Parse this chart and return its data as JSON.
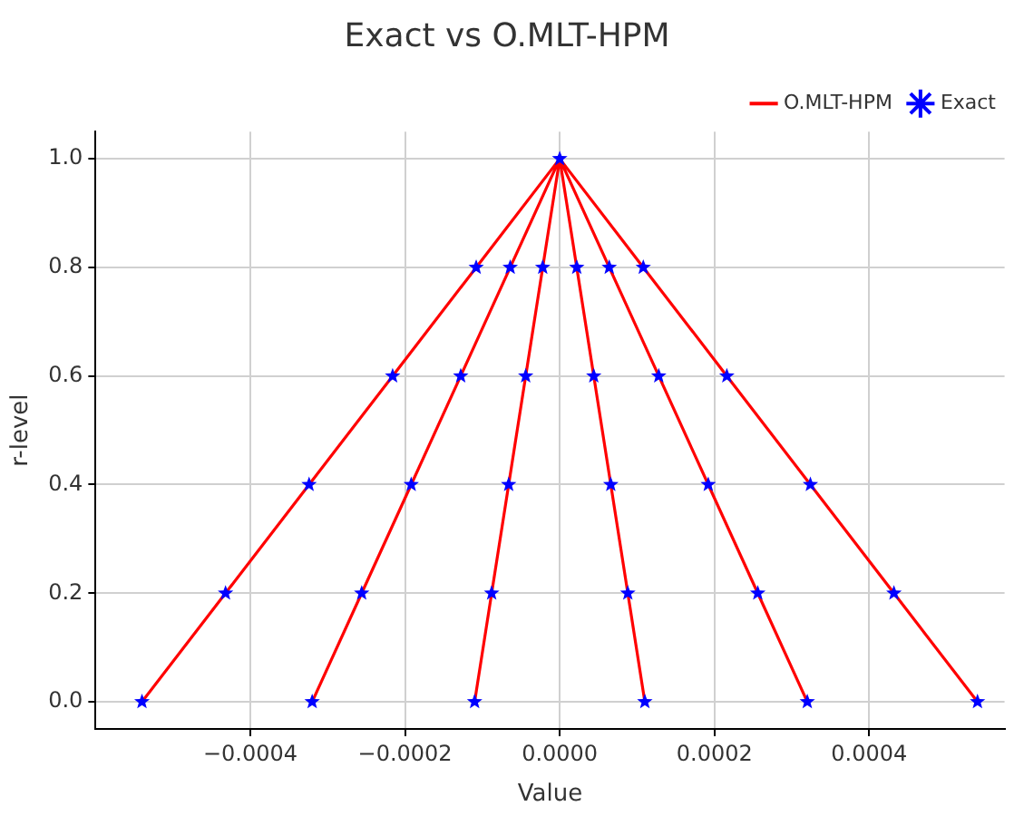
{
  "chart_data": {
    "type": "line",
    "title": "Exact vs O.MLT-HPM",
    "xlabel": "Value",
    "ylabel": "r-level",
    "series": [
      {
        "name": "O.MLT-HPM",
        "color": "#ff0000",
        "marker": "none",
        "x": [
          -0.00054,
          -0.000432,
          -0.000324,
          -0.000216,
          -0.000108,
          0,
          0.000108,
          0.000216,
          0.000324,
          0.000432,
          0.00054,
          null,
          -0.00032,
          -0.000256,
          -0.000192,
          -0.000128,
          -6.4e-05,
          0,
          6.4e-05,
          0.000128,
          0.000192,
          0.000256,
          0.00032,
          null,
          -0.00011,
          -8.8e-05,
          -6.6e-05,
          -4.4e-05,
          -2.2e-05,
          0,
          2.2e-05,
          4.4e-05,
          6.6e-05,
          8.8e-05,
          0.00011
        ],
        "values": [
          0,
          0.2,
          0.4,
          0.6,
          0.8,
          1,
          0.8,
          0.6,
          0.4,
          0.2,
          0,
          null,
          0,
          0.2,
          0.4,
          0.6,
          0.8,
          1,
          0.8,
          0.6,
          0.4,
          0.2,
          0,
          null,
          0,
          0.2,
          0.4,
          0.6,
          0.8,
          1,
          0.8,
          0.6,
          0.4,
          0.2,
          0
        ]
      },
      {
        "name": "Exact",
        "type": "scatter",
        "color": "#0000ff",
        "marker": "star",
        "x": [
          -0.00054,
          -0.000432,
          -0.000324,
          -0.000216,
          -0.000108,
          0,
          0.000108,
          0.000216,
          0.000324,
          0.000432,
          0.00054,
          -0.00032,
          -0.000256,
          -0.000192,
          -0.000128,
          -6.4e-05,
          6.4e-05,
          0.000128,
          0.000192,
          0.000256,
          0.00032,
          -0.00011,
          -8.8e-05,
          -6.6e-05,
          -4.4e-05,
          -2.2e-05,
          2.2e-05,
          4.4e-05,
          6.6e-05,
          8.8e-05,
          0.00011
        ],
        "values": [
          0,
          0.2,
          0.4,
          0.6,
          0.8,
          1,
          0.8,
          0.6,
          0.4,
          0.2,
          0,
          0,
          0.2,
          0.4,
          0.6,
          0.8,
          0.8,
          0.6,
          0.4,
          0.2,
          0,
          0,
          0.2,
          0.4,
          0.6,
          0.8,
          0.8,
          0.6,
          0.4,
          0.2,
          0
        ]
      }
    ],
    "xlim": [
      -0.0006,
      0.000575
    ],
    "ylim": [
      -0.05,
      1.05
    ],
    "xticks": [
      {
        "value": -0.0004,
        "label": "−0.0004"
      },
      {
        "value": -0.0002,
        "label": "−0.0002"
      },
      {
        "value": 0,
        "label": "0.0000"
      },
      {
        "value": 0.0002,
        "label": "0.0002"
      },
      {
        "value": 0.0004,
        "label": "0.0004"
      }
    ],
    "yticks": [
      {
        "value": 0,
        "label": "0.0"
      },
      {
        "value": 0.2,
        "label": "0.2"
      },
      {
        "value": 0.4,
        "label": "0.4"
      },
      {
        "value": 0.6,
        "label": "0.6"
      },
      {
        "value": 0.8,
        "label": "0.8"
      },
      {
        "value": 1,
        "label": "1.0"
      }
    ],
    "grid": true,
    "legend": "top right",
    "line_style": "solid"
  }
}
